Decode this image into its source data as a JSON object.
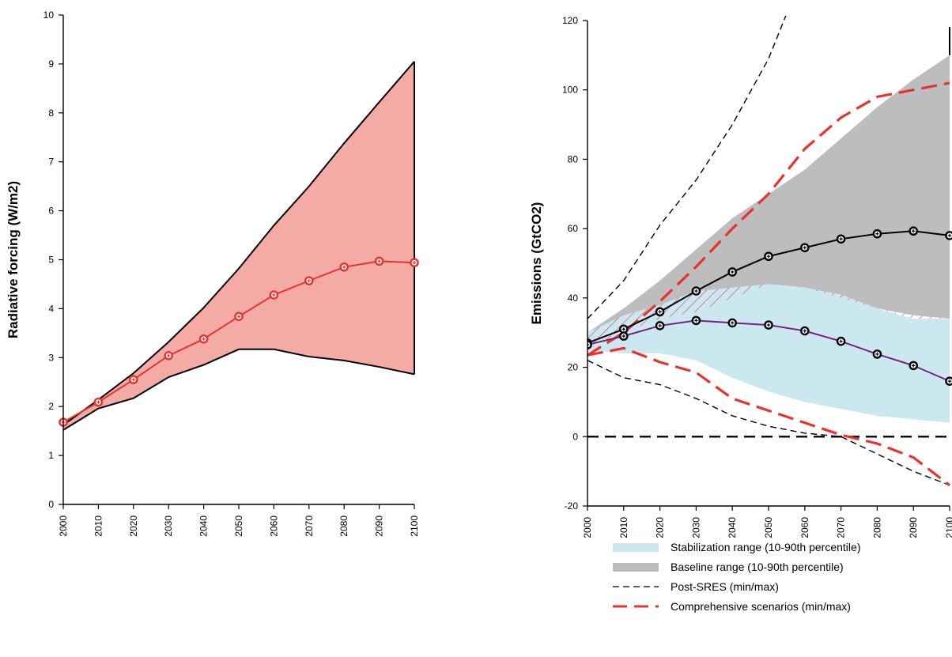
{
  "chart_data": [
    {
      "type": "area",
      "ylabel": "Radiative forcing (W/m2)",
      "xlabel": "",
      "ylim": [
        0,
        10
      ],
      "yticks": [
        0,
        1,
        2,
        3,
        4,
        5,
        6,
        7,
        8,
        9,
        10
      ],
      "x": [
        2000,
        2010,
        2020,
        2030,
        2040,
        2050,
        2060,
        2070,
        2080,
        2090,
        2100
      ],
      "band": {
        "upper": [
          1.62,
          2.14,
          2.68,
          3.32,
          4.02,
          4.82,
          5.7,
          6.5,
          7.38,
          8.22,
          9.05
        ],
        "lower": [
          1.52,
          1.96,
          2.17,
          2.6,
          2.85,
          3.17,
          3.17,
          3.02,
          2.94,
          2.81,
          2.66
        ],
        "color": "#f4aaa5"
      },
      "series": [
        {
          "values": [
            1.68,
            2.09,
            2.55,
            3.04,
            3.38,
            3.84,
            4.28,
            4.57,
            4.85,
            4.97,
            4.94
          ],
          "color": "#e8322c"
        }
      ],
      "grid": false
    },
    {
      "type": "line",
      "ylabel": "Emissions (GtCO2)",
      "xlabel": "",
      "ylim": [
        -20,
        120
      ],
      "yticks": [
        -20,
        0,
        20,
        40,
        60,
        80,
        100,
        120
      ],
      "x": [
        2000,
        2010,
        2020,
        2030,
        2040,
        2050,
        2060,
        2070,
        2080,
        2090,
        2100
      ],
      "bands": {
        "baseline": {
          "upper": [
            30,
            37,
            45,
            54,
            63,
            70,
            77,
            86,
            95,
            103,
            110
          ],
          "lower": [
            25,
            30,
            34,
            36,
            40,
            44,
            43,
            40,
            37,
            35,
            34
          ],
          "color": "#bdbdbd"
        },
        "stabilization": {
          "upper": [
            30,
            35,
            38,
            42,
            43,
            44,
            43,
            41,
            37,
            34,
            34
          ],
          "lower": [
            25,
            24,
            24,
            22,
            17,
            13,
            10,
            8,
            6,
            5,
            4
          ],
          "color": "#cbe8f0"
        },
        "hatch_color": "#d63a55"
      },
      "series": [
        {
          "values": [
            27,
            31,
            36,
            42,
            47.5,
            52,
            54.5,
            57,
            58.5,
            59.3,
            58
          ],
          "color": "#000000",
          "markers": true
        },
        {
          "values": [
            26.5,
            29,
            32,
            33.5,
            32.8,
            32.2,
            30.5,
            27.5,
            23.8,
            20.5,
            16
          ],
          "color": "#7b1f7f",
          "markers": true
        }
      ],
      "post_sres": {
        "max": {
          "x": [
            2000,
            2010,
            2020,
            2030,
            2040,
            2050,
            2055
          ],
          "y": [
            34,
            45,
            61,
            74,
            90,
            109,
            122
          ]
        },
        "min": {
          "x": [
            2000,
            2010,
            2020,
            2030,
            2040,
            2050,
            2060,
            2070,
            2080,
            2090,
            2100
          ],
          "y": [
            22,
            17,
            15,
            11,
            6,
            3,
            1,
            0,
            -5,
            -10,
            -14
          ]
        },
        "color": "#000000"
      },
      "comprehensive": {
        "max": {
          "x": [
            2000,
            2010,
            2020,
            2030,
            2040,
            2050,
            2060,
            2070,
            2080,
            2090,
            2100
          ],
          "y": [
            23.5,
            30,
            39,
            49,
            60,
            70,
            83,
            92,
            98,
            100,
            102
          ]
        },
        "min": {
          "x": [
            2000,
            2010,
            2020,
            2030,
            2040,
            2050,
            2060,
            2070,
            2080,
            2090,
            2100
          ],
          "y": [
            23.5,
            25.5,
            21.5,
            18.5,
            11,
            7.5,
            4,
            0.5,
            -2,
            -6,
            -14
          ]
        },
        "color": "#e8322c"
      },
      "zero_line": 0,
      "grid": false
    }
  ],
  "legend": {
    "items": [
      {
        "label": "Stabilization range (10-90th percentile)",
        "kind": "band",
        "color": "#cbe8f0"
      },
      {
        "label": "Baseline range (10-90th percentile)",
        "kind": "band",
        "color": "#bdbdbd"
      },
      {
        "label": "Post-SRES (min/max)",
        "kind": "dash-thin",
        "color": "#000000"
      },
      {
        "label": "Comprehensive scenarios (min/max)",
        "kind": "dash-thick",
        "color": "#e8322c"
      }
    ]
  }
}
